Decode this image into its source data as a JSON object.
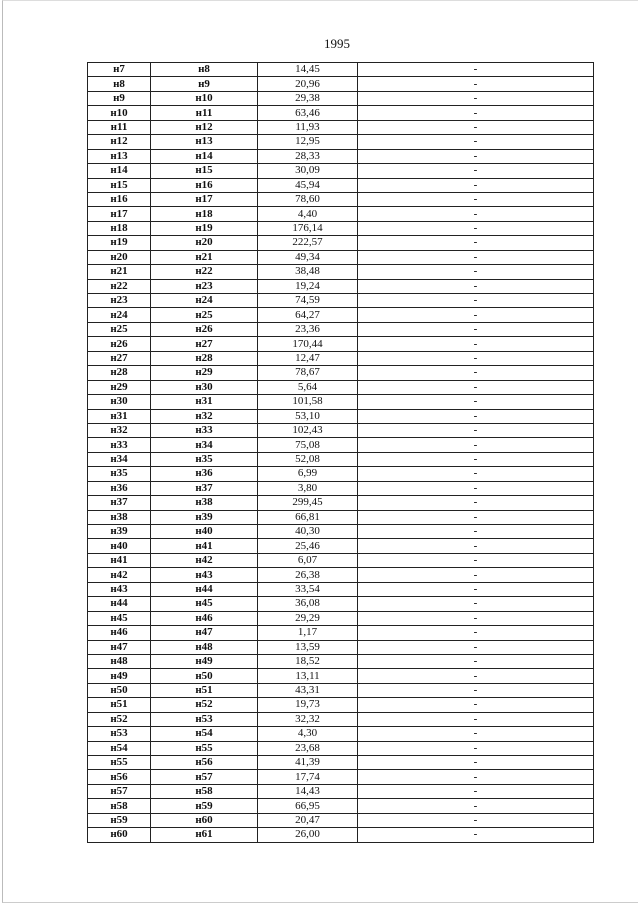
{
  "page_number": "1995",
  "rows": [
    [
      "н7",
      "н8",
      "14,45",
      "-"
    ],
    [
      "н8",
      "н9",
      "20,96",
      "-"
    ],
    [
      "н9",
      "н10",
      "29,38",
      "-"
    ],
    [
      "н10",
      "н11",
      "63,46",
      "-"
    ],
    [
      "н11",
      "н12",
      "11,93",
      "-"
    ],
    [
      "н12",
      "н13",
      "12,95",
      "-"
    ],
    [
      "н13",
      "н14",
      "28,33",
      "-"
    ],
    [
      "н14",
      "н15",
      "30,09",
      "-"
    ],
    [
      "н15",
      "н16",
      "45,94",
      "-"
    ],
    [
      "н16",
      "н17",
      "78,60",
      "-"
    ],
    [
      "н17",
      "н18",
      "4,40",
      "-"
    ],
    [
      "н18",
      "н19",
      "176,14",
      "-"
    ],
    [
      "н19",
      "н20",
      "222,57",
      "-"
    ],
    [
      "н20",
      "н21",
      "49,34",
      "-"
    ],
    [
      "н21",
      "н22",
      "38,48",
      "-"
    ],
    [
      "н22",
      "н23",
      "19,24",
      "-"
    ],
    [
      "н23",
      "н24",
      "74,59",
      "-"
    ],
    [
      "н24",
      "н25",
      "64,27",
      "-"
    ],
    [
      "н25",
      "н26",
      "23,36",
      "-"
    ],
    [
      "н26",
      "н27",
      "170,44",
      "-"
    ],
    [
      "н27",
      "н28",
      "12,47",
      "-"
    ],
    [
      "н28",
      "н29",
      "78,67",
      "-"
    ],
    [
      "н29",
      "н30",
      "5,64",
      "-"
    ],
    [
      "н30",
      "н31",
      "101,58",
      "-"
    ],
    [
      "н31",
      "н32",
      "53,10",
      "-"
    ],
    [
      "н32",
      "н33",
      "102,43",
      "-"
    ],
    [
      "н33",
      "н34",
      "75,08",
      "-"
    ],
    [
      "н34",
      "н35",
      "52,08",
      "-"
    ],
    [
      "н35",
      "н36",
      "6,99",
      "-"
    ],
    [
      "н36",
      "н37",
      "3,80",
      "-"
    ],
    [
      "н37",
      "н38",
      "299,45",
      "-"
    ],
    [
      "н38",
      "н39",
      "66,81",
      "-"
    ],
    [
      "н39",
      "н40",
      "40,30",
      "-"
    ],
    [
      "н40",
      "н41",
      "25,46",
      "-"
    ],
    [
      "н41",
      "н42",
      "6,07",
      "-"
    ],
    [
      "н42",
      "н43",
      "26,38",
      "-"
    ],
    [
      "н43",
      "н44",
      "33,54",
      "-"
    ],
    [
      "н44",
      "н45",
      "36,08",
      "-"
    ],
    [
      "н45",
      "н46",
      "29,29",
      "-"
    ],
    [
      "н46",
      "н47",
      "1,17",
      "-"
    ],
    [
      "н47",
      "н48",
      "13,59",
      "-"
    ],
    [
      "н48",
      "н49",
      "18,52",
      "-"
    ],
    [
      "н49",
      "н50",
      "13,11",
      "-"
    ],
    [
      "н50",
      "н51",
      "43,31",
      "-"
    ],
    [
      "н51",
      "н52",
      "19,73",
      "-"
    ],
    [
      "н52",
      "н53",
      "32,32",
      "-"
    ],
    [
      "н53",
      "н54",
      "4,30",
      "-"
    ],
    [
      "н54",
      "н55",
      "23,68",
      "-"
    ],
    [
      "н55",
      "н56",
      "41,39",
      "-"
    ],
    [
      "н56",
      "н57",
      "17,74",
      "-"
    ],
    [
      "н57",
      "н58",
      "14,43",
      "-"
    ],
    [
      "н58",
      "н59",
      "66,95",
      "-"
    ],
    [
      "н59",
      "н60",
      "20,47",
      "-"
    ],
    [
      "н60",
      "н61",
      "26,00",
      "-"
    ]
  ]
}
